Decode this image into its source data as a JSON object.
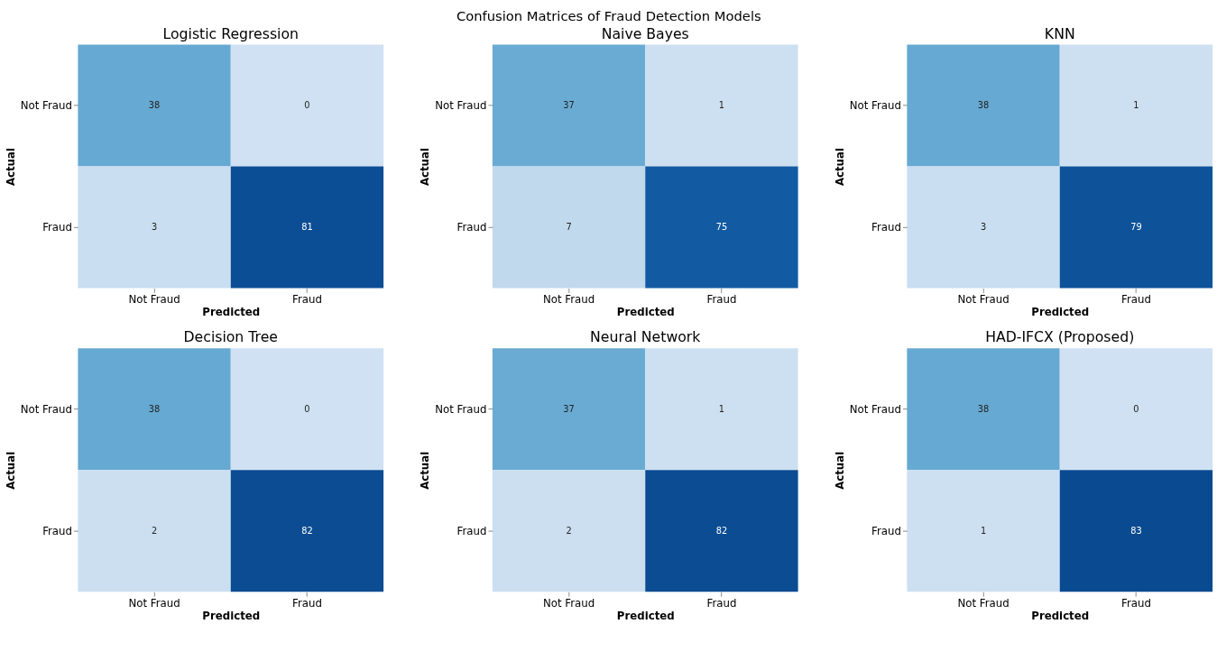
{
  "chart_data": [
    {
      "type": "heatmap",
      "title": "Logistic Regression",
      "annotations": [
        "Confusion Matrices of Fraud Detection Models"
      ],
      "xlabel": "Predicted",
      "ylabel": "Actual",
      "categories": [
        "Not Fraud",
        "Fraud"
      ],
      "y_categories": [
        "Not Fraud",
        "Fraud"
      ],
      "cells": [
        [
          38,
          0
        ],
        [
          3,
          81
        ]
      ],
      "data_labels": true
    },
    {
      "type": "heatmap",
      "title": "Naive Bayes",
      "xlabel": "Predicted",
      "ylabel": "Actual",
      "categories": [
        "Not Fraud",
        "Fraud"
      ],
      "y_categories": [
        "Not Fraud",
        "Fraud"
      ],
      "cells": [
        [
          37,
          1
        ],
        [
          7,
          75
        ]
      ],
      "data_labels": true
    },
    {
      "type": "heatmap",
      "title": "KNN",
      "xlabel": "Predicted",
      "ylabel": "Actual",
      "categories": [
        "Not Fraud",
        "Fraud"
      ],
      "y_categories": [
        "Not Fraud",
        "Fraud"
      ],
      "cells": [
        [
          38,
          1
        ],
        [
          3,
          79
        ]
      ],
      "data_labels": true
    },
    {
      "type": "heatmap",
      "title": "Decision Tree",
      "xlabel": "Predicted",
      "ylabel": "Actual",
      "categories": [
        "Not Fraud",
        "Fraud"
      ],
      "y_categories": [
        "Not Fraud",
        "Fraud"
      ],
      "cells": [
        [
          38,
          0
        ],
        [
          2,
          82
        ]
      ],
      "data_labels": true
    },
    {
      "type": "heatmap",
      "title": "Neural Network",
      "xlabel": "Predicted",
      "ylabel": "Actual",
      "categories": [
        "Not Fraud",
        "Fraud"
      ],
      "y_categories": [
        "Not Fraud",
        "Fraud"
      ],
      "cells": [
        [
          37,
          1
        ],
        [
          2,
          82
        ]
      ],
      "data_labels": true
    },
    {
      "type": "heatmap",
      "title": "HAD-IFCX (Proposed)",
      "xlabel": "Predicted",
      "ylabel": "Actual",
      "categories": [
        "Not Fraud",
        "Fraud"
      ],
      "y_categories": [
        "Not Fraud",
        "Fraud"
      ],
      "cells": [
        [
          38,
          0
        ],
        [
          1,
          83
        ]
      ],
      "data_labels": true
    }
  ]
}
